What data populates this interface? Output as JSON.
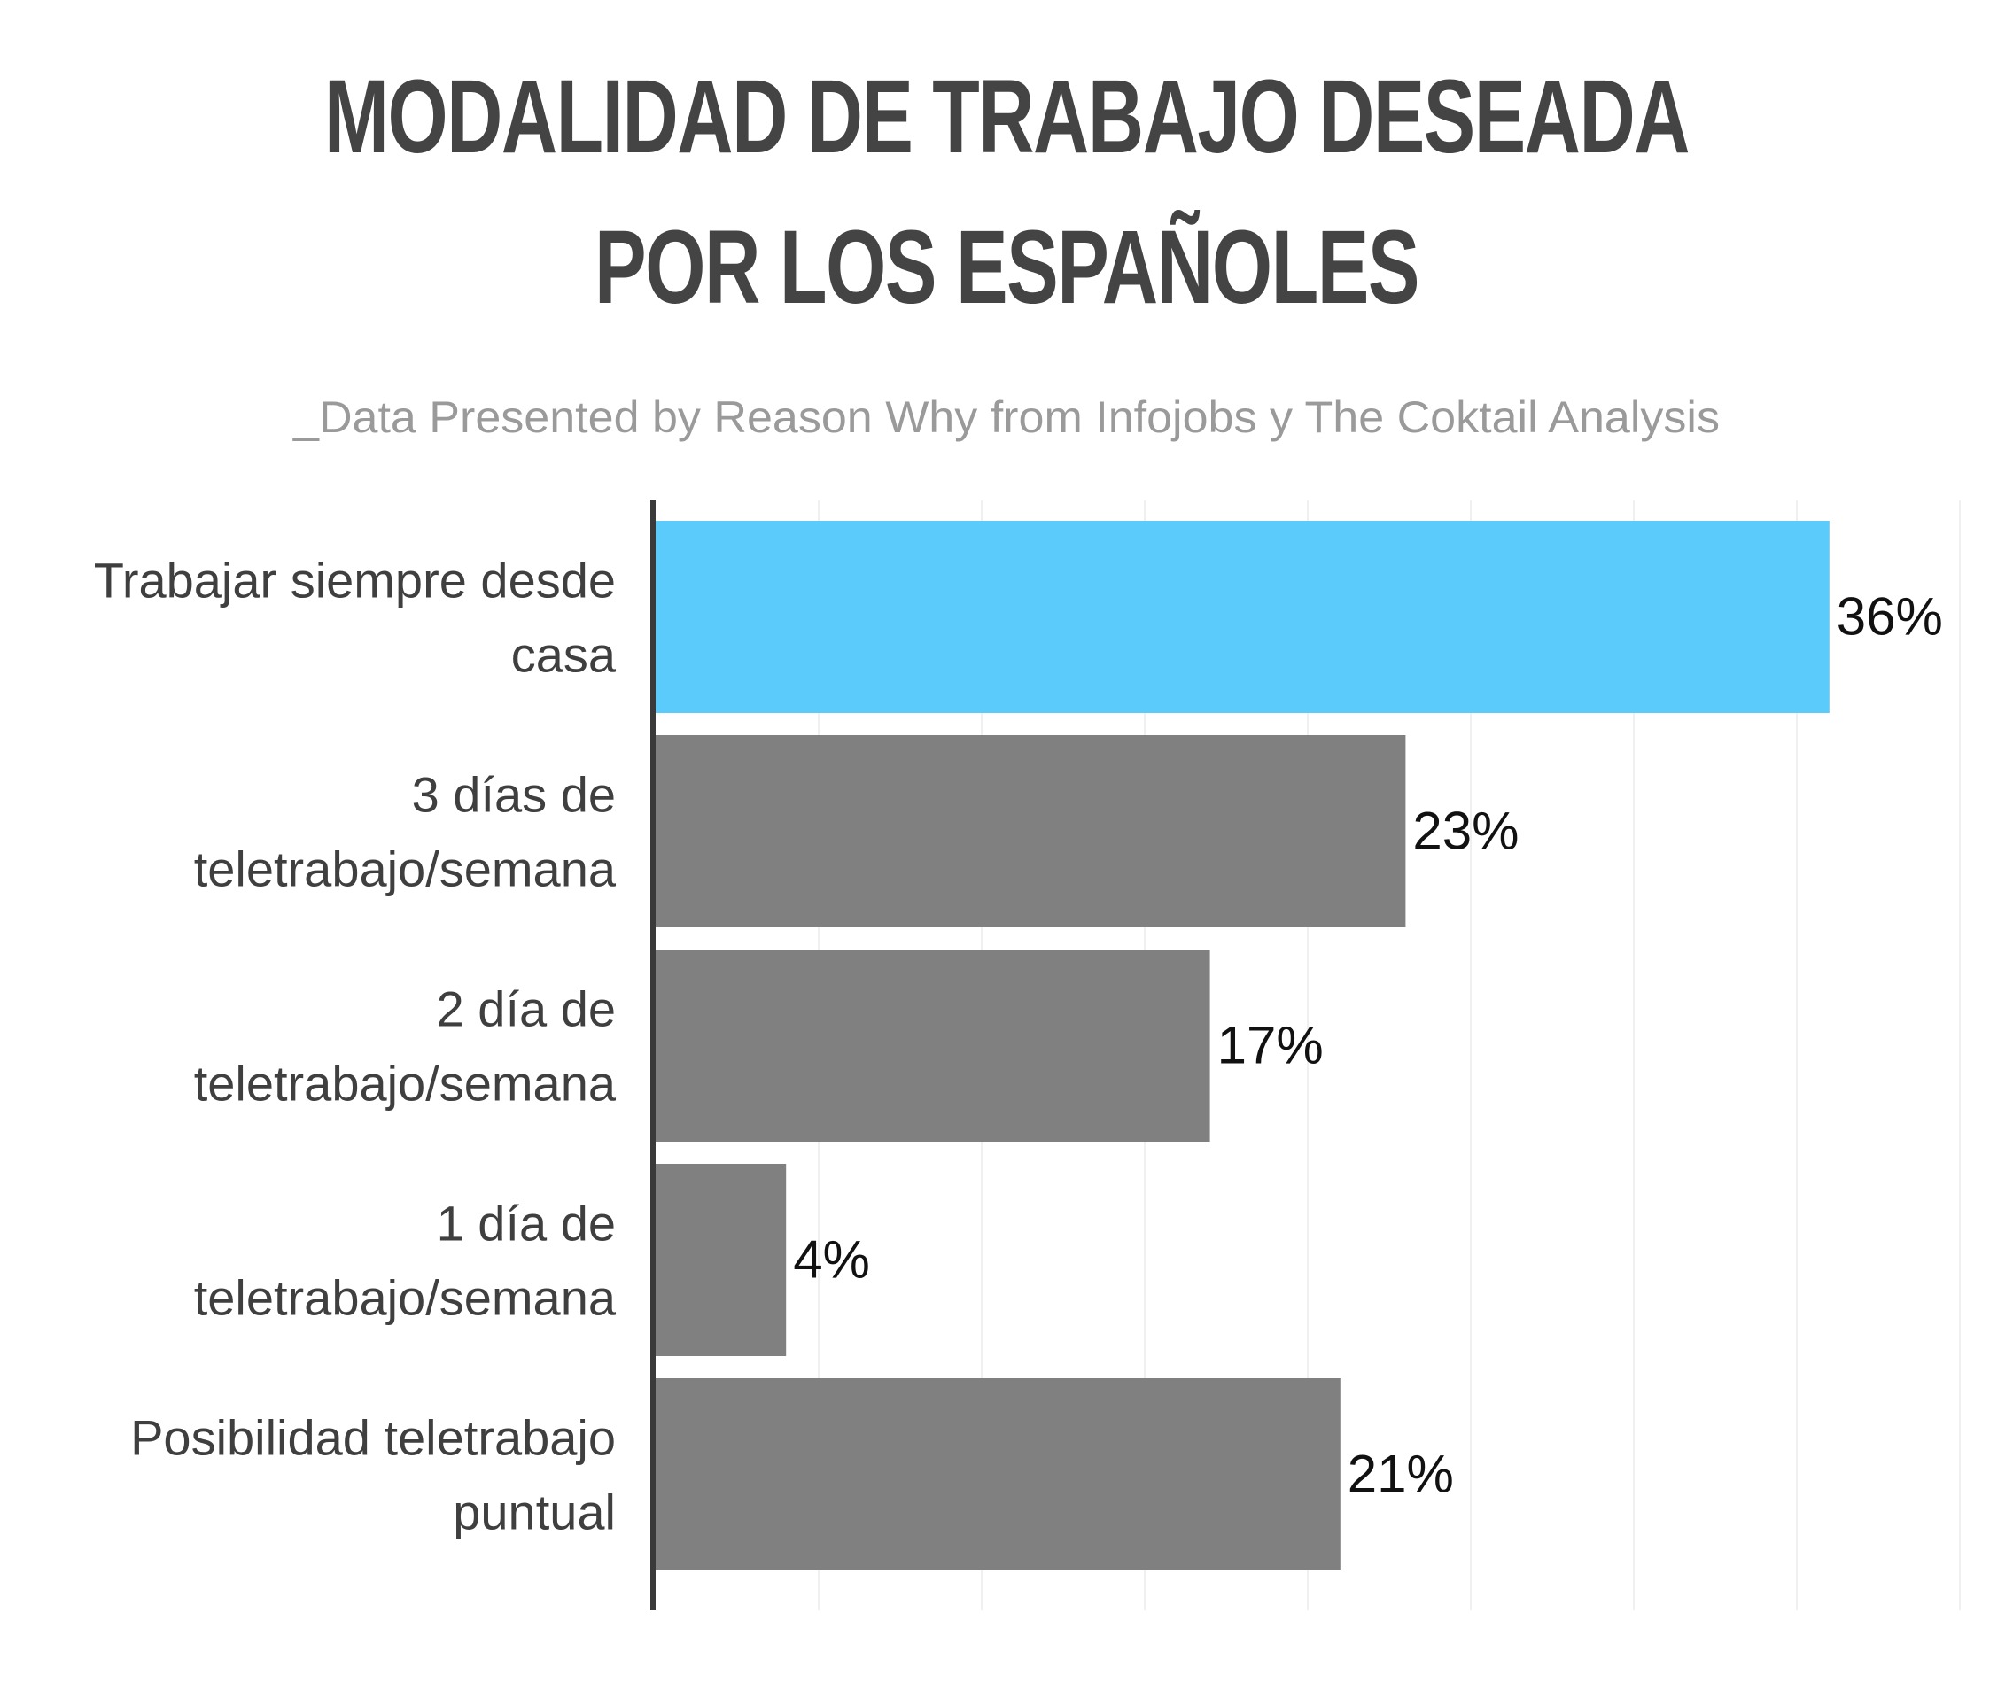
{
  "title_lines": [
    "MODALIDAD DE TRABAJO DESEADA",
    "POR LOS ESPAÑOLES"
  ],
  "subtitle": "_Data Presented by Reason Why from Infojobs y The Coktail Analysis",
  "colors": {
    "highlight": "#5bcbfc",
    "bar": "#808080",
    "axis": "#3a3a3a",
    "grid": "#f0f0f0",
    "title": "#444444",
    "subtitle": "#9a9a9a"
  },
  "chart_data": {
    "type": "bar",
    "orientation": "horizontal",
    "categories": [
      [
        "Trabajar siempre desde",
        "casa"
      ],
      [
        "3 días de",
        "teletrabajo/semana"
      ],
      [
        "2 día de",
        "teletrabajo/semana"
      ],
      [
        "1 día de",
        "teletrabajo/semana"
      ],
      [
        "Posibilidad teletrabajo",
        "puntual"
      ]
    ],
    "values": [
      36,
      23,
      17,
      4,
      21
    ],
    "value_labels": [
      "36%",
      "23%",
      "17%",
      "4%",
      "21%"
    ],
    "highlight_index": 0,
    "xlim": [
      0,
      40
    ],
    "grid": true,
    "legend": "none",
    "unit": "%"
  }
}
